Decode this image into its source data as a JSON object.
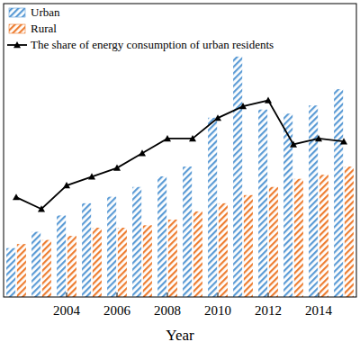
{
  "chart_data": {
    "type": "bar",
    "x_label": "Year",
    "categories": [
      null,
      null,
      "2004",
      null,
      "2006",
      null,
      "2008",
      null,
      "2010",
      null,
      "2012",
      null,
      "2014",
      null
    ],
    "series": [
      {
        "name": "Urban",
        "type": "bar",
        "color": "#5b9bd5",
        "values": [
          60,
          80,
          100,
          115,
          123,
          135,
          148,
          160,
          220,
          295,
          230,
          225,
          235,
          255
        ]
      },
      {
        "name": "Rural",
        "type": "bar",
        "color": "#ed7d31",
        "values": [
          65,
          70,
          75,
          85,
          85,
          88,
          95,
          105,
          115,
          125,
          135,
          145,
          150,
          160
        ]
      },
      {
        "name": "The share of energy consumption of urban residents",
        "type": "line",
        "color": "#000000",
        "marker": "triangle",
        "line_style": "solid",
        "axis": "y2",
        "values": [
          34,
          30,
          38,
          41,
          44,
          49,
          54,
          54,
          61,
          65,
          67,
          52,
          54,
          53
        ]
      }
    ],
    "ylim": [
      0,
      360
    ],
    "y2lim": [
      0,
      100
    ],
    "tick_labels": "x",
    "grid": false,
    "legend": "top-left"
  }
}
